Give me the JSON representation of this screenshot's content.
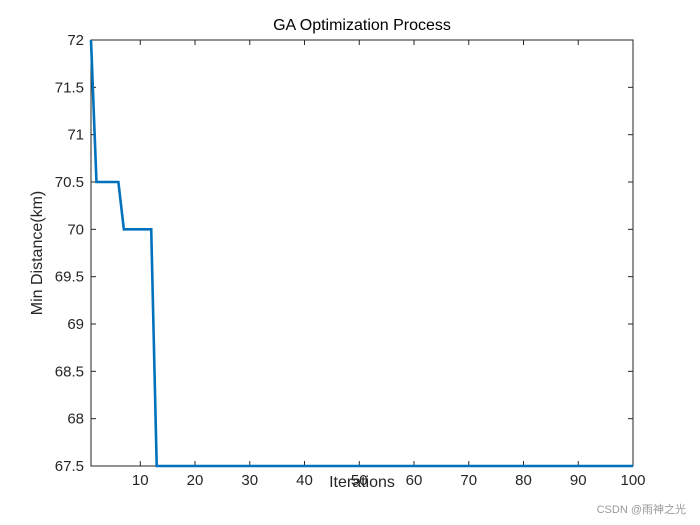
{
  "chart_data": {
    "type": "line",
    "title": "GA Optimization Process",
    "xlabel": "Iterations",
    "ylabel": "Min Distance(km)",
    "xlim": [
      1,
      100
    ],
    "ylim": [
      67.5,
      72
    ],
    "x_ticks": [
      10,
      20,
      30,
      40,
      50,
      60,
      70,
      80,
      90,
      100
    ],
    "y_ticks": [
      67.5,
      68,
      68.5,
      69,
      69.5,
      70,
      70.5,
      71,
      71.5,
      72
    ],
    "x_tick_labels": [
      "10",
      "20",
      "30",
      "40",
      "50",
      "60",
      "70",
      "80",
      "90",
      "100"
    ],
    "y_tick_labels": [
      "67.5",
      "68",
      "68.5",
      "69",
      "69.5",
      "70",
      "70.5",
      "71",
      "71.5",
      "72"
    ],
    "grid": false,
    "series": [
      {
        "color": "#0072BD",
        "x": [
          1,
          2,
          3,
          4,
          5,
          6,
          7,
          8,
          9,
          10,
          11,
          12,
          13,
          14,
          15,
          16,
          17,
          18,
          19,
          20,
          21,
          22,
          23,
          24,
          25,
          26,
          27,
          28,
          29,
          30,
          31,
          32,
          33,
          34,
          35,
          36,
          37,
          38,
          39,
          40,
          41,
          42,
          43,
          44,
          45,
          46,
          47,
          48,
          49,
          50,
          51,
          52,
          53,
          54,
          55,
          56,
          57,
          58,
          59,
          60,
          61,
          62,
          63,
          64,
          65,
          66,
          67,
          68,
          69,
          70,
          71,
          72,
          73,
          74,
          75,
          76,
          77,
          78,
          79,
          80,
          81,
          82,
          83,
          84,
          85,
          86,
          87,
          88,
          89,
          90,
          91,
          92,
          93,
          94,
          95,
          96,
          97,
          98,
          99,
          100
        ],
        "y": [
          72,
          70.5,
          70.5,
          70.5,
          70.5,
          70.5,
          70,
          70,
          70,
          70,
          70,
          70,
          67.5,
          67.5,
          67.5,
          67.5,
          67.5,
          67.5,
          67.5,
          67.5,
          67.5,
          67.5,
          67.5,
          67.5,
          67.5,
          67.5,
          67.5,
          67.5,
          67.5,
          67.5,
          67.5,
          67.5,
          67.5,
          67.5,
          67.5,
          67.5,
          67.5,
          67.5,
          67.5,
          67.5,
          67.5,
          67.5,
          67.5,
          67.5,
          67.5,
          67.5,
          67.5,
          67.5,
          67.5,
          67.5,
          67.5,
          67.5,
          67.5,
          67.5,
          67.5,
          67.5,
          67.5,
          67.5,
          67.5,
          67.5,
          67.5,
          67.5,
          67.5,
          67.5,
          67.5,
          67.5,
          67.5,
          67.5,
          67.5,
          67.5,
          67.5,
          67.5,
          67.5,
          67.5,
          67.5,
          67.5,
          67.5,
          67.5,
          67.5,
          67.5,
          67.5,
          67.5,
          67.5,
          67.5,
          67.5,
          67.5,
          67.5,
          67.5,
          67.5,
          67.5,
          67.5,
          67.5,
          67.5,
          67.5,
          67.5,
          67.5,
          67.5,
          67.5,
          67.5,
          67.5
        ]
      }
    ]
  },
  "watermark": "CSDN @雨神之光"
}
